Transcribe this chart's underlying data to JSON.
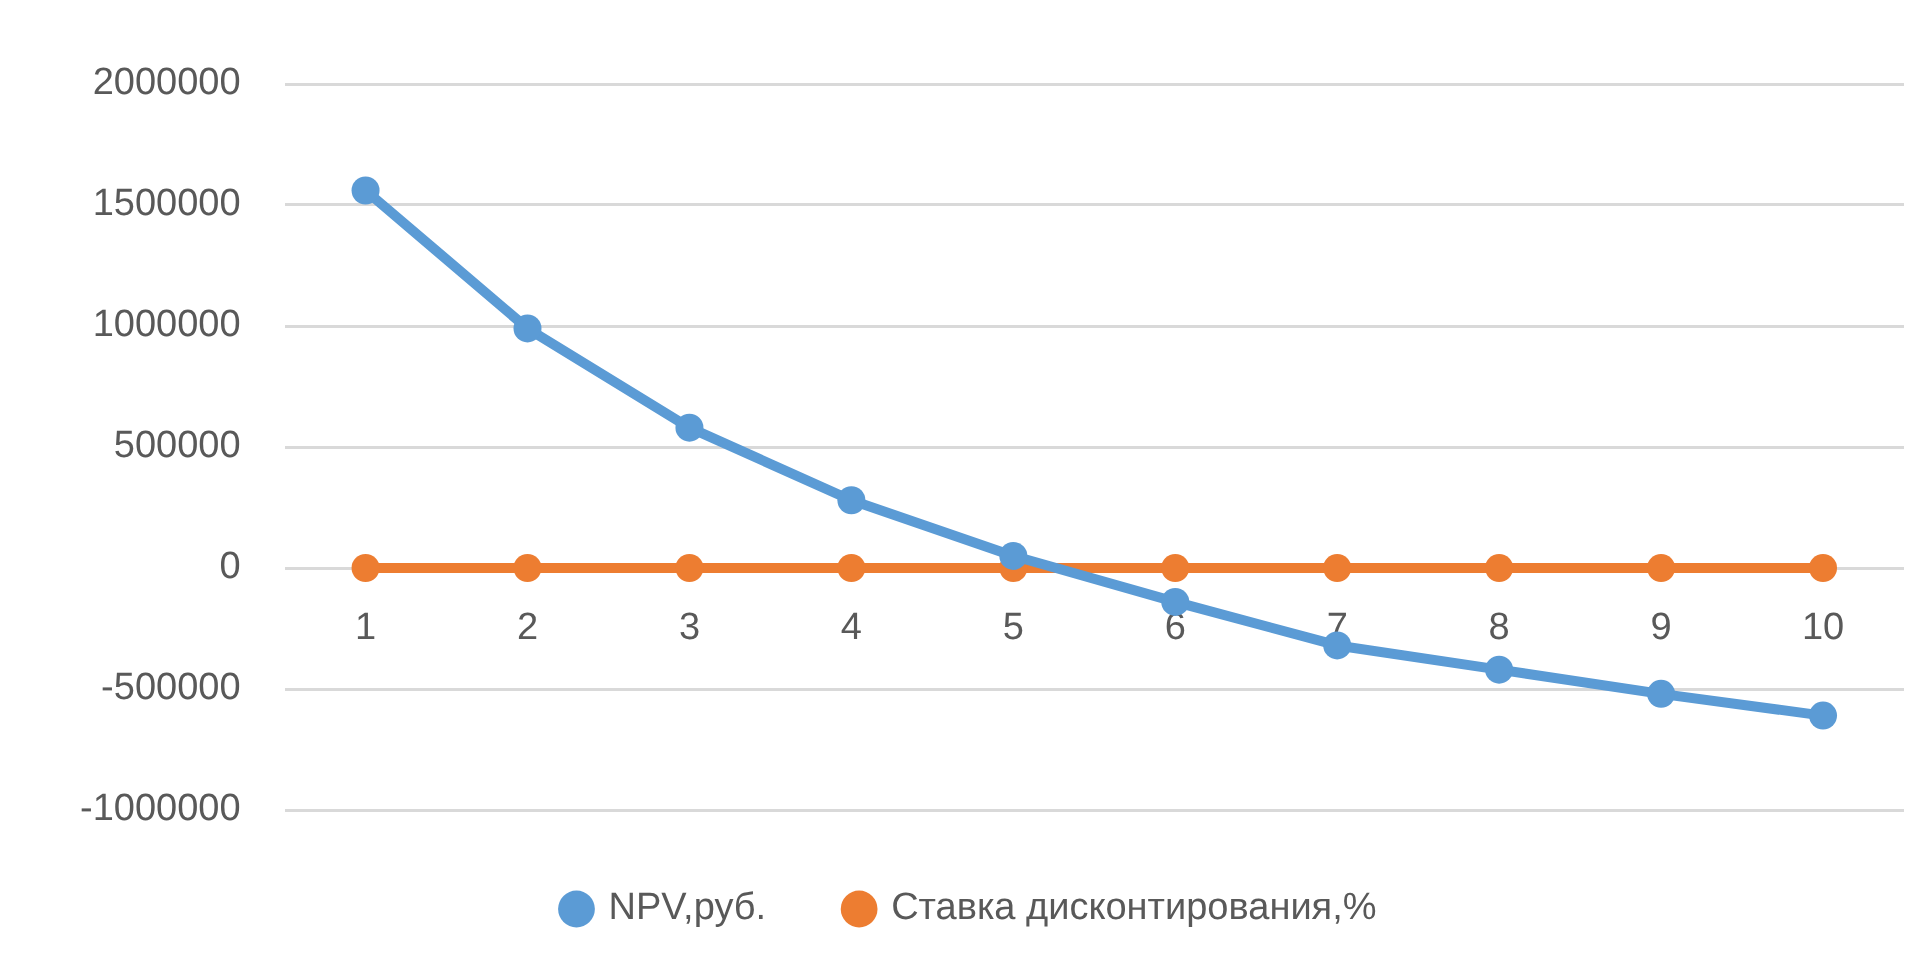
{
  "chart_data": {
    "type": "line",
    "categories": [
      "1",
      "2",
      "3",
      "4",
      "5",
      "6",
      "7",
      "8",
      "9",
      "10"
    ],
    "series": [
      {
        "name": "NPV,руб.",
        "color": "#5b9bd5",
        "values": [
          1560000,
          990000,
          580000,
          280000,
          50000,
          -140000,
          -320000,
          -420000,
          -520000,
          -610000
        ]
      },
      {
        "name": "Ставка дисконтирования,%",
        "color": "#ed7d31",
        "values": [
          0,
          0,
          0,
          0,
          0,
          0,
          0,
          0,
          0,
          0
        ]
      }
    ],
    "ylim": [
      -1000000,
      2000000
    ],
    "yticks": [
      -1000000,
      -500000,
      0,
      500000,
      1000000,
      1500000,
      2000000
    ],
    "grid": "y",
    "legend": "bottom",
    "marker": "circle",
    "line_style": "solid"
  }
}
